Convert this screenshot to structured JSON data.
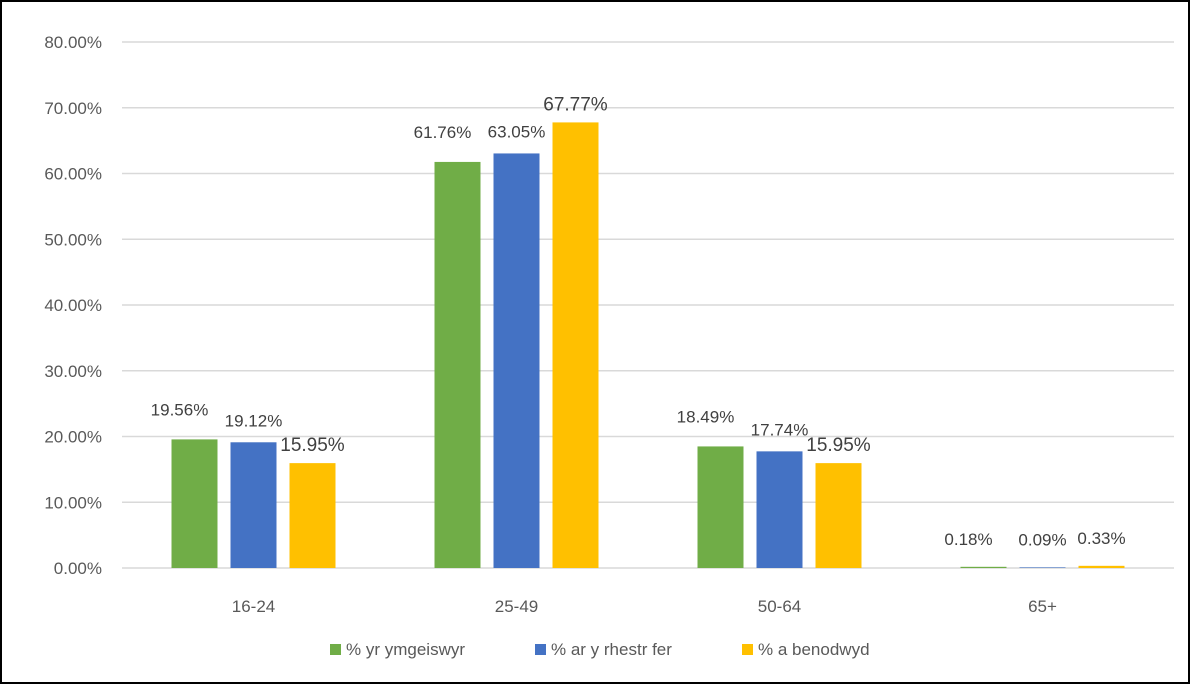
{
  "chart_data": {
    "type": "bar",
    "title": "",
    "xlabel": "",
    "ylabel": "",
    "categories": [
      "16-24",
      "25-49",
      "50-64",
      "65+"
    ],
    "series": [
      {
        "name": "% yr ymgeiswyr",
        "color": "#70AD47",
        "values": [
          19.56,
          61.76,
          18.49,
          0.18
        ],
        "labels": [
          "19.56%",
          "61.76%",
          "18.49%",
          "0.18%"
        ]
      },
      {
        "name": "% ar y rhestr fer",
        "color": "#4472C4",
        "values": [
          19.12,
          63.05,
          17.74,
          0.09
        ],
        "labels": [
          "19.12%",
          "63.05%",
          "17.74%",
          "0.09%"
        ]
      },
      {
        "name": "% a benodwyd",
        "color": "#FFC000",
        "values": [
          15.95,
          67.77,
          15.95,
          0.33
        ],
        "labels": [
          "15.95%",
          "67.77%",
          "15.95%",
          "0.33%"
        ]
      }
    ],
    "ylim": [
      0,
      80
    ],
    "yticks": [
      0,
      10,
      20,
      30,
      40,
      50,
      60,
      70,
      80
    ],
    "ytick_labels": [
      "0.00%",
      "10.00%",
      "20.00%",
      "30.00%",
      "40.00%",
      "50.00%",
      "60.00%",
      "70.00%",
      "80.00%"
    ],
    "grid": true,
    "legend_position": "bottom",
    "gridline_color": "#D9D9D9"
  }
}
